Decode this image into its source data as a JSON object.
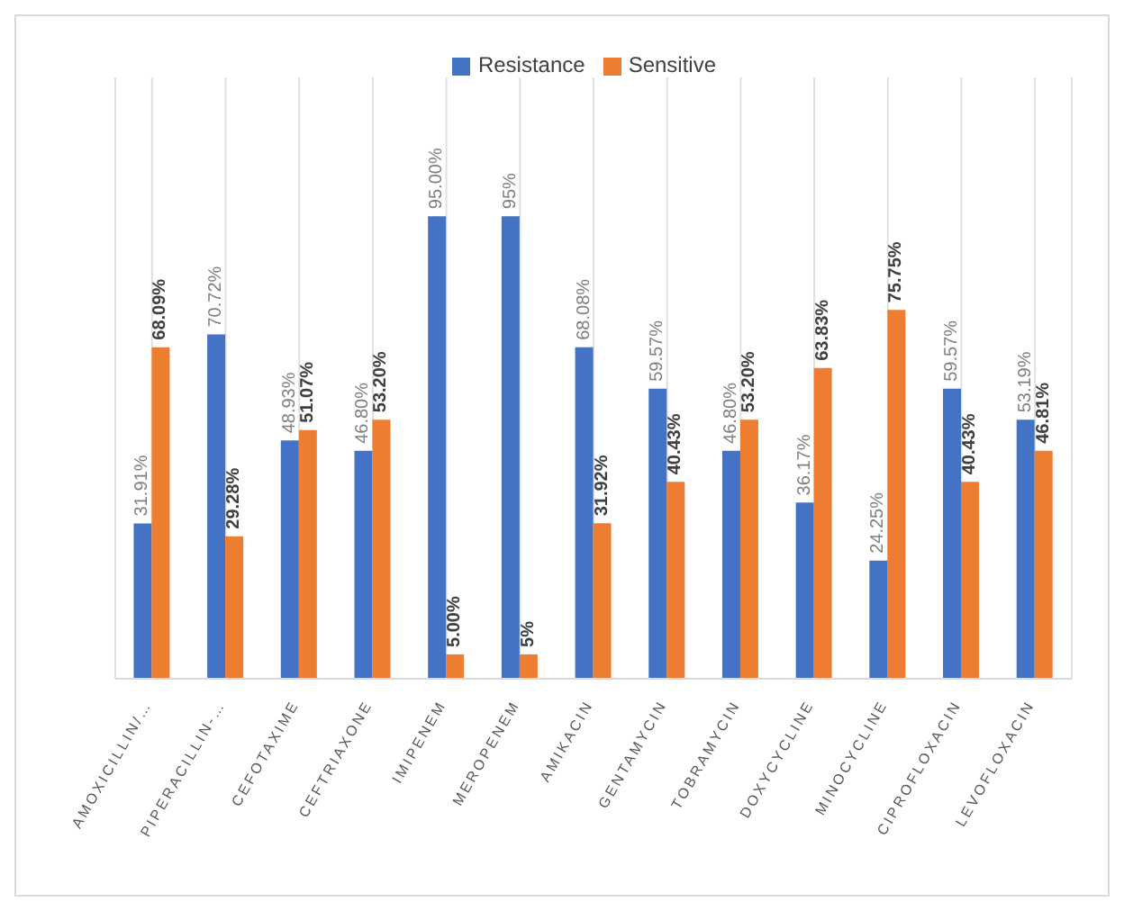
{
  "chart_data": {
    "type": "bar",
    "categories": [
      "AMOXICILLIN/…",
      "PIPERACILLIN-…",
      "CEFOTAXIME",
      "CEFTRIAXONE",
      "IMIPENEM",
      "MEROPENEM",
      "AMIKACIN",
      "GENTAMYCIN",
      "TOBRAMYCIN",
      "DOXYCYCLINE",
      "MINOCYCLINE",
      "CIPROFLOXACIN",
      "LEVOFLOXACIN"
    ],
    "series": [
      {
        "name": "Resistance",
        "color": "#4472c4",
        "values": [
          31.91,
          70.72,
          48.93,
          46.8,
          95,
          95,
          68.08,
          59.57,
          46.8,
          36.17,
          24.25,
          59.57,
          53.19
        ],
        "value_labels": [
          "31.91%",
          "70.72%",
          "48.93%",
          "46.80%",
          "95.00%",
          "95%",
          "68.08%",
          "59.57%",
          "46.80%",
          "36.17%",
          "24.25%",
          "59.57%",
          "53.19%"
        ]
      },
      {
        "name": "Sensitive",
        "color": "#ed7d31",
        "values": [
          68.09,
          29.28,
          51.07,
          53.2,
          5,
          5,
          31.92,
          40.43,
          53.2,
          63.83,
          75.75,
          40.43,
          46.81
        ],
        "value_labels": [
          "68.09%",
          "29.28%",
          "51.07%",
          "53.20%",
          "5.00%",
          "5%",
          "31.92%",
          "40.43%",
          "53.20%",
          "63.83%",
          "75.75%",
          "40.43%",
          "46.81%"
        ]
      }
    ],
    "legend": "top",
    "grid": "x"
  }
}
